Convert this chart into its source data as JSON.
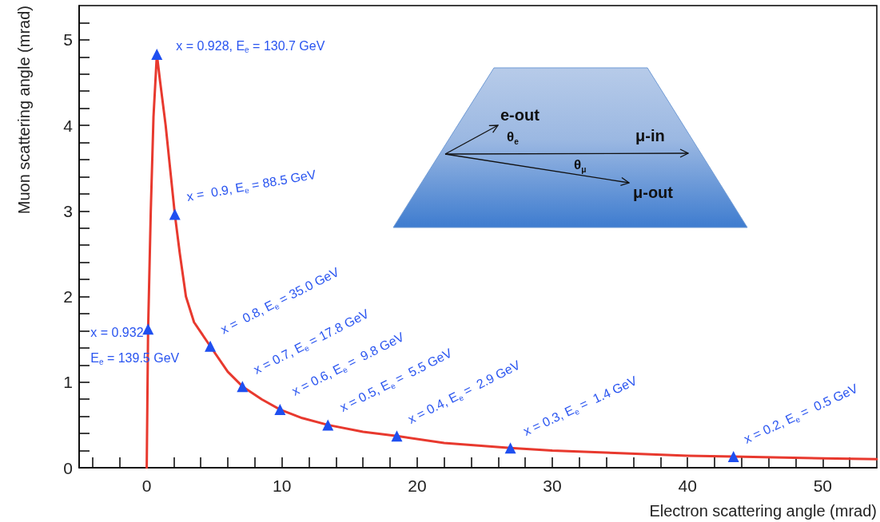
{
  "chart_data": {
    "type": "line",
    "xlabel": "Electron scattering angle (mrad)",
    "ylabel": "Muon scattering angle (mrad)",
    "xlim": [
      -5,
      54
    ],
    "ylim": [
      0,
      5.4
    ],
    "xticks": [
      {
        "value": -4,
        "label": null
      },
      {
        "value": -2,
        "label": null
      },
      0,
      {
        "value": 2,
        "label": null
      },
      {
        "value": 4,
        "label": null
      },
      {
        "value": 6,
        "label": null
      },
      {
        "value": 8,
        "label": null
      },
      10,
      {
        "value": 12,
        "label": null
      },
      {
        "value": 14,
        "label": null
      },
      {
        "value": 16,
        "label": null
      },
      {
        "value": 18,
        "label": null
      },
      20,
      {
        "value": 22,
        "label": null
      },
      {
        "value": 24,
        "label": null
      },
      {
        "value": 26,
        "label": null
      },
      {
        "value": 28,
        "label": null
      },
      30,
      {
        "value": 32,
        "label": null
      },
      {
        "value": 34,
        "label": null
      },
      {
        "value": 36,
        "label": null
      },
      {
        "value": 38,
        "label": null
      },
      40,
      {
        "value": 42,
        "label": null
      },
      {
        "value": 44,
        "label": null
      },
      {
        "value": 46,
        "label": null
      },
      {
        "value": 48,
        "label": null
      },
      50,
      {
        "value": 52,
        "label": null
      }
    ],
    "yticks": [
      0,
      {
        "value": 0.2,
        "label": null
      },
      {
        "value": 0.4,
        "label": null
      },
      {
        "value": 0.6,
        "label": null
      },
      {
        "value": 0.8,
        "label": null
      },
      1,
      {
        "value": 1.2,
        "label": null
      },
      {
        "value": 1.4,
        "label": null
      },
      {
        "value": 1.6,
        "label": null
      },
      {
        "value": 1.8,
        "label": null
      },
      2,
      {
        "value": 2.2,
        "label": null
      },
      {
        "value": 2.4,
        "label": null
      },
      {
        "value": 2.6,
        "label": null
      },
      {
        "value": 2.8,
        "label": null
      },
      3,
      {
        "value": 3.2,
        "label": null
      },
      {
        "value": 3.4,
        "label": null
      },
      {
        "value": 3.6,
        "label": null
      },
      {
        "value": 3.8,
        "label": null
      },
      4,
      {
        "value": 4.2,
        "label": null
      },
      {
        "value": 4.4,
        "label": null
      },
      {
        "value": 4.6,
        "label": null
      },
      {
        "value": 4.8,
        "label": null
      },
      5,
      {
        "value": 5.2,
        "label": null
      }
    ],
    "series": [
      {
        "type": "line",
        "color": "#e8392e",
        "marker": "none",
        "line_style": "solid",
        "x": [
          0,
          0.1,
          0.3,
          0.5,
          0.75,
          1.0,
          1.4,
          2.08,
          2.45,
          2.9,
          3.5,
          4.7,
          6,
          7.08,
          8.5,
          9.86,
          11.5,
          13.4,
          16,
          18.5,
          22,
          26.9,
          30,
          35,
          40,
          43.4,
          50,
          54
        ],
        "values": [
          0,
          1.6,
          3.0,
          4.1,
          4.83,
          4.5,
          4.0,
          2.96,
          2.5,
          2.0,
          1.7,
          1.42,
          1.12,
          0.95,
          0.8,
          0.68,
          0.58,
          0.5,
          0.42,
          0.37,
          0.29,
          0.23,
          0.2,
          0.17,
          0.14,
          0.13,
          0.11,
          0.1
        ]
      },
      {
        "type": "scatter",
        "color": "#1f4ff0",
        "marker": "triangle",
        "x": [
          0.1,
          0.75,
          2.08,
          4.7,
          7.08,
          9.86,
          13.4,
          18.5,
          26.9,
          43.4
        ],
        "values": [
          1.62,
          4.83,
          2.96,
          1.42,
          0.95,
          0.68,
          0.5,
          0.37,
          0.23,
          0.13
        ]
      }
    ],
    "annotations": [
      {
        "text": "x = 0.932\nE$_{e}$ = 139.5 GeV",
        "x": 0.1,
        "y": 1.62
      },
      {
        "text": "x = 0.928, E$_{e}$ = 130.7 GeV",
        "x": 0.75,
        "y": 4.83
      },
      {
        "text": "x =  0.9, E$_{e}$ = 88.5 GeV",
        "x": 2.08,
        "y": 2.96
      },
      {
        "text": "x =  0.8, E$_{e}$ = 35.0 GeV",
        "x": 4.7,
        "y": 1.42
      },
      {
        "text": "x = 0.7, E$_{e}$ = 17.8 GeV",
        "x": 7.08,
        "y": 0.95
      },
      {
        "text": "x = 0.6, E$_{e}$ =  9.8 GeV",
        "x": 9.86,
        "y": 0.68
      },
      {
        "text": "x = 0.5, E$_{e}$ =  5.5 GeV",
        "x": 13.4,
        "y": 0.5
      },
      {
        "text": "x = 0.4, E$_{e}$ =  2.9 GeV",
        "x": 18.5,
        "y": 0.37
      },
      {
        "text": "x = 0.3, E$_{e}$ =  1.4 GeV",
        "x": 26.9,
        "y": 0.23
      },
      {
        "text": "x = 0.2, E$_{e}$ =  0.5 GeV",
        "x": 43.4,
        "y": 0.13
      },
      "e-out",
      "θ$_{e}$",
      "μ-in",
      "θ$_{μ}$",
      "μ-out"
    ]
  }
}
